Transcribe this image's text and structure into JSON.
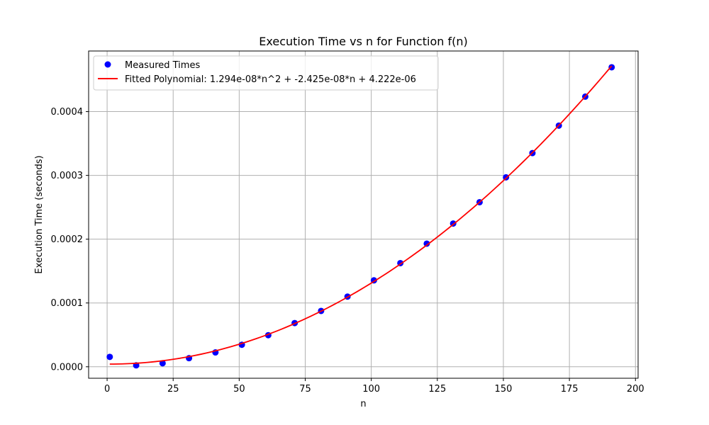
{
  "chart_data": {
    "type": "scatter",
    "title": "Execution Time vs n for Function f(n)",
    "xlabel": "n",
    "ylabel": "Execution Time (seconds)",
    "xlim": [
      -7,
      201
    ],
    "ylim": [
      -1.8e-05,
      0.000495
    ],
    "xticks": [
      0,
      25,
      50,
      75,
      100,
      125,
      150,
      175,
      200
    ],
    "yticks": [
      0.0,
      0.0001,
      0.0002,
      0.0003,
      0.0004
    ],
    "ytick_labels": [
      "0.0000",
      "0.0001",
      "0.0002",
      "0.0003",
      "0.0004"
    ],
    "grid": true,
    "legend_position": "top-left",
    "series": [
      {
        "name": "Measured Times",
        "kind": "scatter",
        "color": "#0000ff",
        "x": [
          1,
          11,
          21,
          31,
          41,
          51,
          61,
          71,
          81,
          91,
          101,
          111,
          121,
          131,
          141,
          151,
          161,
          171,
          181,
          191
        ],
        "y": [
          1.55e-05,
          2.2e-06,
          5.5e-06,
          1.35e-05,
          2.25e-05,
          3.45e-05,
          4.95e-05,
          6.85e-05,
          8.75e-05,
          0.00011,
          0.0001355,
          0.0001625,
          0.000193,
          0.0002245,
          0.000258,
          0.000297,
          0.000335,
          0.000378,
          0.0004235,
          0.0004695
        ]
      },
      {
        "name": "Fitted Polynomial: 1.294e-08*n^2 + -2.425e-08*n + 4.222e-06",
        "kind": "line",
        "color": "#ff0000",
        "coefficients": [
          1.294e-08,
          -2.425e-08,
          4.222e-06
        ],
        "x_range": [
          1,
          191
        ]
      }
    ]
  }
}
